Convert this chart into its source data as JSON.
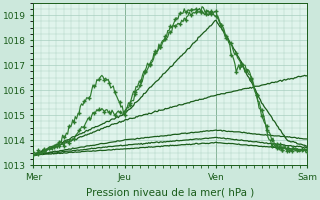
{
  "background_color": "#cce8dc",
  "plot_bg_color": "#e0f4ec",
  "grid_color": "#a8cfc0",
  "line_dark": "#1a5c1a",
  "line_mid": "#2d7a2d",
  "ylim": [
    1013,
    1019.5
  ],
  "xlim": [
    0,
    108
  ],
  "yticks": [
    1013,
    1014,
    1015,
    1016,
    1017,
    1018,
    1019
  ],
  "xlabel": "Pression niveau de la mer( hPa )",
  "xlabel_fontsize": 7.5,
  "tick_fontsize": 6.5,
  "days": [
    "Mer",
    "Jeu",
    "Ven",
    "Sam"
  ],
  "day_positions": [
    0,
    36,
    72,
    108
  ],
  "figsize": [
    3.2,
    2.0
  ],
  "dpi": 100
}
